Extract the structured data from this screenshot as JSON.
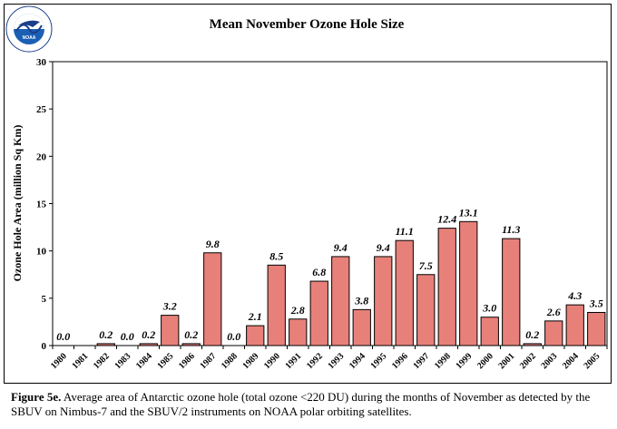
{
  "chart_data": {
    "type": "bar",
    "title": "Mean November Ozone Hole Size",
    "ylabel": "Ozone Hole Area (million Sq Km)",
    "xlabel": "",
    "ylim": [
      0,
      30
    ],
    "yticks": [
      0,
      5,
      10,
      15,
      20,
      25,
      30
    ],
    "categories": [
      "1980",
      "1981",
      "1982",
      "1983",
      "1984",
      "1985",
      "1986",
      "1987",
      "1988",
      "1989",
      "1990",
      "1991",
      "1992",
      "1993",
      "1994",
      "1995",
      "1996",
      "1997",
      "1998",
      "1999",
      "2000",
      "2001",
      "2002",
      "2003",
      "2004",
      "2005"
    ],
    "values": [
      0.0,
      null,
      0.2,
      0.0,
      0.2,
      3.2,
      0.2,
      9.8,
      0.0,
      2.1,
      8.5,
      2.8,
      6.8,
      9.4,
      3.8,
      9.4,
      11.1,
      7.5,
      12.4,
      13.1,
      3.0,
      11.3,
      0.2,
      2.6,
      4.3,
      3.5
    ],
    "labels": [
      "0.0",
      "",
      "0.2",
      "0.0",
      "0.2",
      "3.2",
      "0.2",
      "9.8",
      "0.0",
      "2.1",
      "8.5",
      "2.8",
      "6.8",
      "9.4",
      "3.8",
      "9.4",
      "11.1",
      "7.5",
      "12.4",
      "13.1",
      "3.0",
      "11.3",
      "0.2",
      "2.6",
      "4.3",
      "3.5"
    ],
    "bar_color": "#e8807a",
    "grid": false
  },
  "logo": {
    "text": "NOAA",
    "ring_text": "NATIONAL OCEANIC AND ATMOSPHERIC ADMINISTRATION · U.S. DEPARTMENT OF COMMERCE",
    "icon": "noaa-logo-icon"
  },
  "caption": {
    "label": "Figure 5e.",
    "text": " Average area of Antarctic ozone hole (total ozone <220 DU) during the months of  November as detected by the SBUV on Nimbus-7 and the SBUV/2 instruments on NOAA polar orbiting satellites."
  }
}
